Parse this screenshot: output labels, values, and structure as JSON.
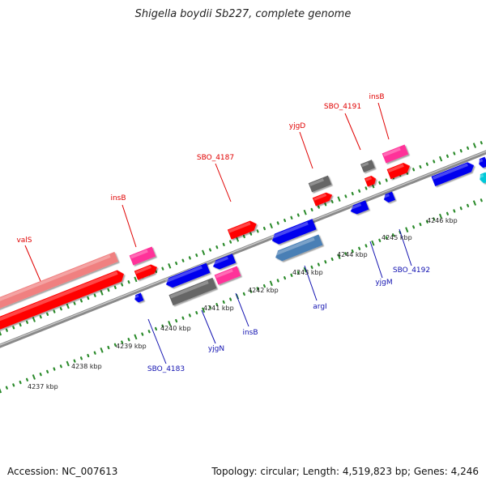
{
  "title": "Shigella boydii Sb227, complete genome",
  "footer": {
    "accession": "Accession: NC_007613",
    "summary": "Topology: circular; Length: 4,519,823 bp; Genes: 4,246"
  },
  "colors": {
    "red": "#ff0000",
    "pink": "#ff3399",
    "lightred": "#f08080",
    "blue": "#0000ee",
    "steelblue": "#4a7fb5",
    "gray": "#666666",
    "cyan": "#00c8d8",
    "ruler": "#2a8a2a"
  },
  "scale": {
    "tick_labels": [
      "4237 kbp",
      "4238 kbp",
      "4239 kbp",
      "4240 kbp",
      "4241 kbp",
      "4242 kbp",
      "4243 kbp",
      "4244 kbp",
      "4245 kbp",
      "4246 kbp"
    ]
  },
  "features": [
    {
      "label": "valS",
      "strand": "top",
      "color": "red",
      "label_color": "red"
    },
    {
      "label": "insB",
      "strand": "top",
      "color": "pink",
      "label_color": "red"
    },
    {
      "label": "SBO_4187",
      "strand": "top",
      "color": "red",
      "label_color": "red"
    },
    {
      "label": "yjgD",
      "strand": "top",
      "color": "gray",
      "label_color": "red"
    },
    {
      "label": "SBO_4191",
      "strand": "top",
      "color": "gray",
      "label_color": "red"
    },
    {
      "label": "insB",
      "strand": "top",
      "color": "pink",
      "label_color": "red"
    },
    {
      "label": "SBO_4183",
      "strand": "bottom",
      "color": "blue",
      "label_color": "blue"
    },
    {
      "label": "yjgN",
      "strand": "bottom",
      "color": "gray",
      "label_color": "blue"
    },
    {
      "label": "insB",
      "strand": "bottom",
      "color": "pink",
      "label_color": "blue"
    },
    {
      "label": "argI",
      "strand": "bottom",
      "color": "steelblue",
      "label_color": "blue"
    },
    {
      "label": "yjgM",
      "strand": "bottom",
      "color": "blue",
      "label_color": "blue"
    },
    {
      "label": "SBO_4192",
      "strand": "bottom",
      "color": "blue",
      "label_color": "blue"
    }
  ]
}
